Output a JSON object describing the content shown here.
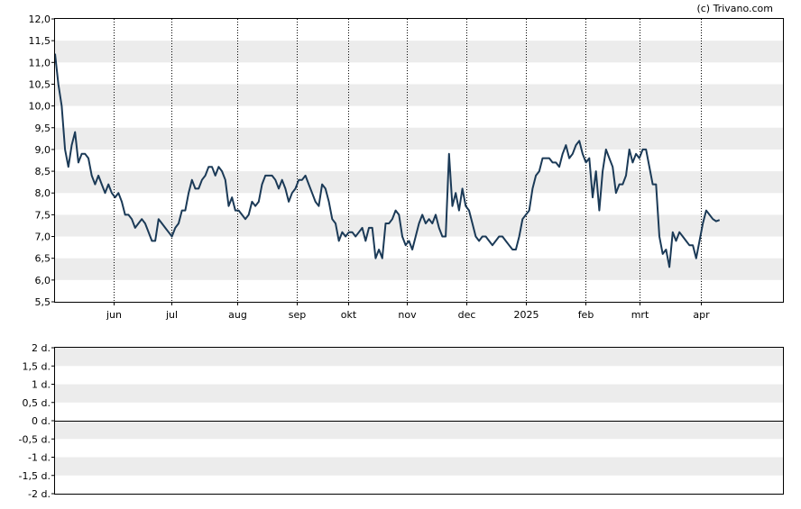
{
  "credit": "(c) Trivano.com",
  "chart_data": [
    {
      "type": "line",
      "title": "",
      "xlabel": "",
      "ylabel": "",
      "ylim": [
        5.5,
        12.0
      ],
      "y_ticks": [
        "12,0",
        "11,5",
        "11,0",
        "10,5",
        "10,0",
        "9,5",
        "9,0",
        "8,5",
        "8,0",
        "7,5",
        "7,0",
        "6,5",
        "6,0",
        "5,5"
      ],
      "y_tick_values": [
        12.0,
        11.5,
        11.0,
        10.5,
        10.0,
        9.5,
        9.0,
        8.5,
        8.0,
        7.5,
        7.0,
        6.5,
        6.0,
        5.5
      ],
      "x_ticks": [
        "jun",
        "jul",
        "aug",
        "sep",
        "okt",
        "nov",
        "dec",
        "2025",
        "feb",
        "mrt",
        "apr"
      ],
      "x_tick_positions": [
        17.5,
        34.8,
        54.7,
        72.5,
        87.9,
        105.3,
        123.1,
        141.1,
        158.9,
        175.0,
        193.3
      ],
      "x_range": [
        0,
        218
      ],
      "grid": "horizontal bands, vertical dotted lines",
      "line_color": "#1b3a57",
      "series": [
        {
          "name": "",
          "points": [
            [
              0,
              11.2
            ],
            [
              1,
              10.5
            ],
            [
              2,
              10.0
            ],
            [
              3,
              9.0
            ],
            [
              4,
              8.6
            ],
            [
              5,
              9.1
            ],
            [
              6,
              9.4
            ],
            [
              7,
              8.7
            ],
            [
              8,
              8.9
            ],
            [
              9,
              8.9
            ],
            [
              10,
              8.8
            ],
            [
              11,
              8.4
            ],
            [
              12,
              8.2
            ],
            [
              13,
              8.4
            ],
            [
              14,
              8.2
            ],
            [
              15,
              8.0
            ],
            [
              16,
              8.2
            ],
            [
              17,
              8.0
            ],
            [
              18,
              7.9
            ],
            [
              19,
              8.0
            ],
            [
              20,
              7.8
            ],
            [
              21,
              7.5
            ],
            [
              22,
              7.5
            ],
            [
              23,
              7.4
            ],
            [
              24,
              7.2
            ],
            [
              25,
              7.3
            ],
            [
              26,
              7.4
            ],
            [
              27,
              7.3
            ],
            [
              28,
              7.1
            ],
            [
              29,
              6.9
            ],
            [
              30,
              6.9
            ],
            [
              31,
              7.4
            ],
            [
              32,
              7.3
            ],
            [
              33,
              7.2
            ],
            [
              34,
              7.1
            ],
            [
              35,
              7.0
            ],
            [
              36,
              7.2
            ],
            [
              37,
              7.3
            ],
            [
              38,
              7.6
            ],
            [
              39,
              7.6
            ],
            [
              40,
              8.0
            ],
            [
              41,
              8.3
            ],
            [
              42,
              8.1
            ],
            [
              43,
              8.1
            ],
            [
              44,
              8.3
            ],
            [
              45,
              8.4
            ],
            [
              46,
              8.6
            ],
            [
              47,
              8.6
            ],
            [
              48,
              8.4
            ],
            [
              49,
              8.6
            ],
            [
              50,
              8.5
            ],
            [
              51,
              8.3
            ],
            [
              52,
              7.7
            ],
            [
              53,
              7.9
            ],
            [
              54,
              7.6
            ],
            [
              55,
              7.6
            ],
            [
              56,
              7.5
            ],
            [
              57,
              7.4
            ],
            [
              58,
              7.5
            ],
            [
              59,
              7.8
            ],
            [
              60,
              7.7
            ],
            [
              61,
              7.8
            ],
            [
              62,
              8.2
            ],
            [
              63,
              8.4
            ],
            [
              64,
              8.4
            ],
            [
              65,
              8.4
            ],
            [
              66,
              8.3
            ],
            [
              67,
              8.1
            ],
            [
              68,
              8.3
            ],
            [
              69,
              8.1
            ],
            [
              70,
              7.8
            ],
            [
              71,
              8.0
            ],
            [
              72,
              8.1
            ],
            [
              73,
              8.3
            ],
            [
              74,
              8.3
            ],
            [
              75,
              8.4
            ],
            [
              76,
              8.2
            ],
            [
              77,
              8.0
            ],
            [
              78,
              7.8
            ],
            [
              79,
              7.7
            ],
            [
              80,
              8.2
            ],
            [
              81,
              8.1
            ],
            [
              82,
              7.8
            ],
            [
              83,
              7.4
            ],
            [
              84,
              7.3
            ],
            [
              85,
              6.9
            ],
            [
              86,
              7.1
            ],
            [
              87,
              7.0
            ],
            [
              88,
              7.1
            ],
            [
              89,
              7.1
            ],
            [
              90,
              7.0
            ],
            [
              91,
              7.1
            ],
            [
              92,
              7.2
            ],
            [
              93,
              6.9
            ],
            [
              94,
              7.2
            ],
            [
              95,
              7.2
            ],
            [
              96,
              6.5
            ],
            [
              97,
              6.7
            ],
            [
              98,
              6.5
            ],
            [
              99,
              7.3
            ],
            [
              100,
              7.3
            ],
            [
              101,
              7.4
            ],
            [
              102,
              7.6
            ],
            [
              103,
              7.5
            ],
            [
              104,
              7.0
            ],
            [
              105,
              6.8
            ],
            [
              106,
              6.9
            ],
            [
              107,
              6.7
            ],
            [
              108,
              7.0
            ],
            [
              109,
              7.3
            ],
            [
              110,
              7.5
            ],
            [
              111,
              7.3
            ],
            [
              112,
              7.4
            ],
            [
              113,
              7.3
            ],
            [
              114,
              7.5
            ],
            [
              115,
              7.2
            ],
            [
              116,
              7.0
            ],
            [
              117,
              7.0
            ],
            [
              118,
              8.9
            ],
            [
              119,
              7.7
            ],
            [
              120,
              8.0
            ],
            [
              121,
              7.6
            ],
            [
              122,
              8.1
            ],
            [
              123,
              7.7
            ],
            [
              124,
              7.6
            ],
            [
              125,
              7.3
            ],
            [
              126,
              7.0
            ],
            [
              127,
              6.9
            ],
            [
              128,
              7.0
            ],
            [
              129,
              7.0
            ],
            [
              130,
              6.9
            ],
            [
              131,
              6.8
            ],
            [
              132,
              6.9
            ],
            [
              133,
              7.0
            ],
            [
              134,
              7.0
            ],
            [
              135,
              6.9
            ],
            [
              136,
              6.8
            ],
            [
              137,
              6.7
            ],
            [
              138,
              6.7
            ],
            [
              139,
              7.0
            ],
            [
              140,
              7.4
            ],
            [
              141,
              7.5
            ],
            [
              142,
              7.6
            ],
            [
              143,
              8.1
            ],
            [
              144,
              8.4
            ],
            [
              145,
              8.5
            ],
            [
              146,
              8.8
            ],
            [
              147,
              8.8
            ],
            [
              148,
              8.8
            ],
            [
              149,
              8.7
            ],
            [
              150,
              8.7
            ],
            [
              151,
              8.6
            ],
            [
              152,
              8.9
            ],
            [
              153,
              9.1
            ],
            [
              154,
              8.8
            ],
            [
              155,
              8.9
            ],
            [
              156,
              9.1
            ],
            [
              157,
              9.2
            ],
            [
              158,
              8.9
            ],
            [
              159,
              8.7
            ],
            [
              160,
              8.8
            ],
            [
              161,
              7.9
            ],
            [
              162,
              8.5
            ],
            [
              163,
              7.6
            ],
            [
              164,
              8.5
            ],
            [
              165,
              9.0
            ],
            [
              166,
              8.8
            ],
            [
              167,
              8.6
            ],
            [
              168,
              8.0
            ],
            [
              169,
              8.2
            ],
            [
              170,
              8.2
            ],
            [
              171,
              8.4
            ],
            [
              172,
              9.0
            ],
            [
              173,
              8.7
            ],
            [
              174,
              8.9
            ],
            [
              175,
              8.8
            ],
            [
              176,
              9.0
            ],
            [
              177,
              9.0
            ],
            [
              178,
              8.6
            ],
            [
              179,
              8.2
            ],
            [
              180,
              8.2
            ],
            [
              181,
              7.0
            ],
            [
              182,
              6.6
            ],
            [
              183,
              6.7
            ],
            [
              184,
              6.3
            ],
            [
              185,
              7.1
            ],
            [
              186,
              6.9
            ],
            [
              187,
              7.1
            ],
            [
              188,
              7.0
            ],
            [
              189,
              6.9
            ],
            [
              190,
              6.8
            ],
            [
              191,
              6.8
            ],
            [
              192,
              6.5
            ],
            [
              193,
              6.9
            ],
            [
              194,
              7.3
            ],
            [
              195,
              7.6
            ],
            [
              196,
              7.5
            ],
            [
              197,
              7.4
            ],
            [
              198,
              7.35
            ],
            [
              199,
              7.38
            ]
          ]
        }
      ]
    },
    {
      "type": "line",
      "title": "",
      "xlabel": "",
      "ylabel": "",
      "ylim": [
        -2,
        2
      ],
      "y_ticks": [
        "2 d.",
        "1,5 d.",
        "1 d.",
        "0,5 d.",
        "0 d.",
        "-0,5 d.",
        "-1 d.",
        "-1,5 d.",
        "-2 d."
      ],
      "y_tick_values": [
        2,
        1.5,
        1,
        0.5,
        0,
        -0.5,
        -1,
        -1.5,
        -2
      ],
      "grid": "horizontal bands",
      "series": [
        {
          "name": "",
          "values": [
            0
          ]
        }
      ]
    }
  ]
}
